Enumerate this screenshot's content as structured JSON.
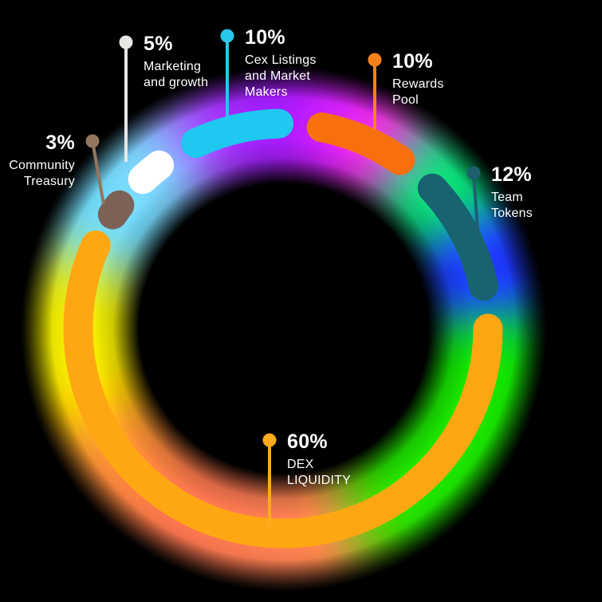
{
  "page": {
    "background": "#000000"
  },
  "chart_data": {
    "type": "pie",
    "variant": "donut",
    "title": "",
    "unit": "%",
    "total": 100,
    "layout_note": "segments drawn clockwise starting at 3 o'clock",
    "slices": [
      {
        "id": "dex-liquidity",
        "label": "DEX LIQUIDITY",
        "value": 60,
        "color": "#FFA713"
      },
      {
        "id": "community-treasury",
        "label": "Community Treasury",
        "value": 3,
        "color": "#7B6156"
      },
      {
        "id": "marketing-growth",
        "label": "Marketing and growth",
        "value": 5,
        "color": "#FFFFFF"
      },
      {
        "id": "cex-listings",
        "label": "Cex Listings and Market Makers",
        "value": 10,
        "color": "#1EC8EF"
      },
      {
        "id": "rewards-pool",
        "label": "Rewards Pool",
        "value": 10,
        "color": "#F8700E"
      },
      {
        "id": "team-tokens",
        "label": "Team Tokens",
        "value": 12,
        "color": "#176470"
      }
    ]
  },
  "callouts": {
    "marketing": {
      "percent": "5%",
      "lines": [
        "Marketing",
        "and growth"
      ],
      "color": "#E9E7E4"
    },
    "cex": {
      "percent": "10%",
      "lines": [
        "Cex Listings",
        "and Market",
        "Makers"
      ],
      "color": "#29C7EA"
    },
    "rewards": {
      "percent": "10%",
      "lines": [
        "Rewards",
        "Pool"
      ],
      "color": "#F8821A"
    },
    "team": {
      "percent": "12%",
      "lines": [
        "Team",
        "Tokens"
      ],
      "color": "#1D5F6D"
    },
    "dex": {
      "percent": "60%",
      "lines": [
        "DEX",
        "LIQUIDITY"
      ],
      "color": "#FFAB1B"
    },
    "community": {
      "percent": "3%",
      "lines": [
        "Community",
        "Treasury"
      ],
      "color": "#94765C"
    }
  },
  "glow": {
    "stops": [
      {
        "at": 0,
        "color": "#1FCF52"
      },
      {
        "at": 8,
        "color": "#32DD1F"
      },
      {
        "at": 60,
        "color": "#3EDC16"
      },
      {
        "at": 80,
        "color": "#F98A63"
      },
      {
        "at": 120,
        "color": "#F97C5E"
      },
      {
        "at": 148,
        "color": "#FB9A4A"
      },
      {
        "at": 166,
        "color": "#F5EE16"
      },
      {
        "at": 192,
        "color": "#E9E93A"
      },
      {
        "at": 206,
        "color": "#7ED7F3"
      },
      {
        "at": 232,
        "color": "#8FD9F6"
      },
      {
        "at": 250,
        "color": "#9A3BF2"
      },
      {
        "at": 268,
        "color": "#8D21EA"
      },
      {
        "at": 284,
        "color": "#C32BE4"
      },
      {
        "at": 298,
        "color": "#E43EC4"
      },
      {
        "at": 312,
        "color": "#2ADF8D"
      },
      {
        "at": 326,
        "color": "#27D877"
      },
      {
        "at": 336,
        "color": "#2838F0"
      },
      {
        "at": 350,
        "color": "#2433EC"
      },
      {
        "at": 360,
        "color": "#1FCF52"
      }
    ]
  }
}
